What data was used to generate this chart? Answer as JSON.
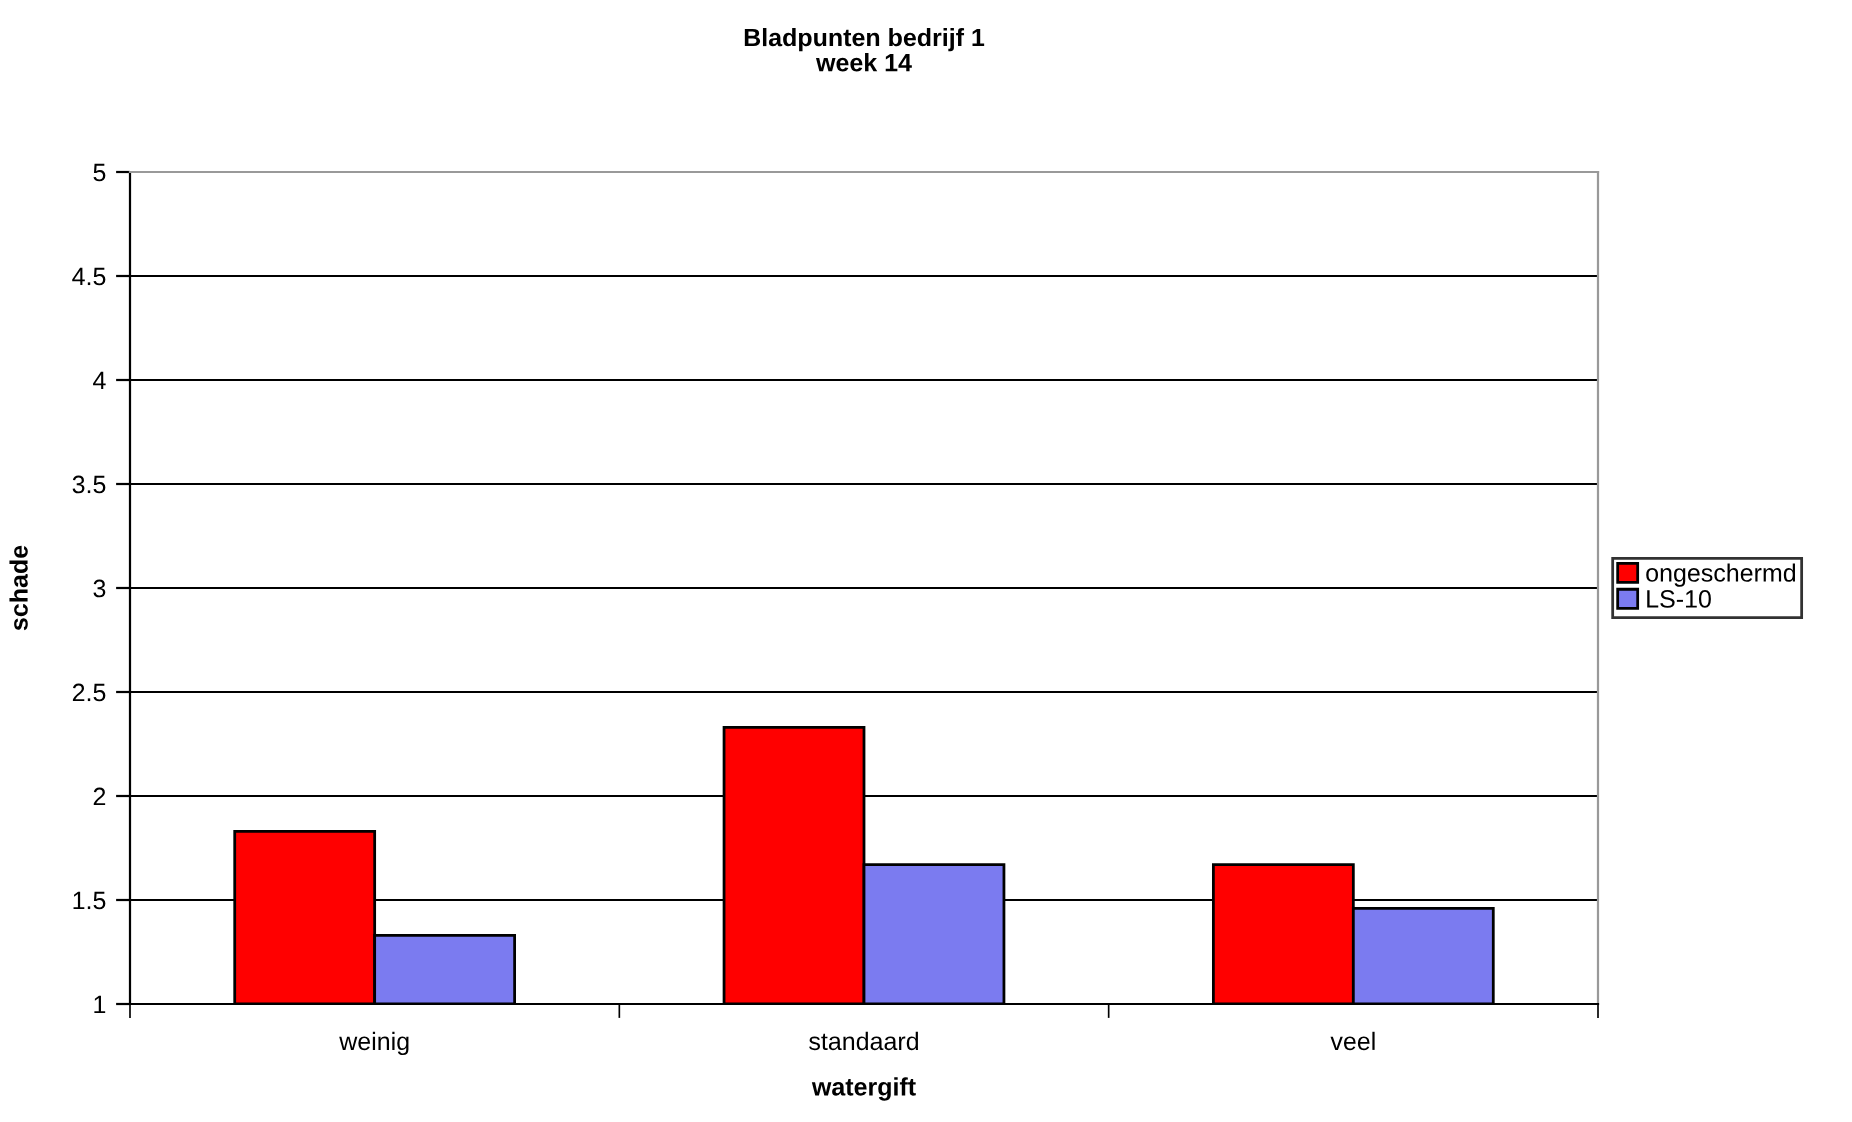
{
  "chart_data": {
    "type": "bar",
    "title": "Bladpunten bedrijf 1\nweek 14",
    "xlabel": "watergift",
    "ylabel": "schade",
    "categories": [
      "weinig",
      "standaard",
      "veel"
    ],
    "series": [
      {
        "name": "ongeschermd",
        "color": "#ff0000",
        "values": [
          1.83,
          2.33,
          1.67
        ]
      },
      {
        "name": "LS-10",
        "color": "#7b7bf0",
        "values": [
          1.33,
          1.67,
          1.46
        ]
      }
    ],
    "ylim": [
      1,
      5
    ],
    "yticks": [
      1,
      1.5,
      2,
      2.5,
      3,
      3.5,
      4,
      4.5,
      5
    ],
    "grid": "y",
    "legend": "right"
  }
}
